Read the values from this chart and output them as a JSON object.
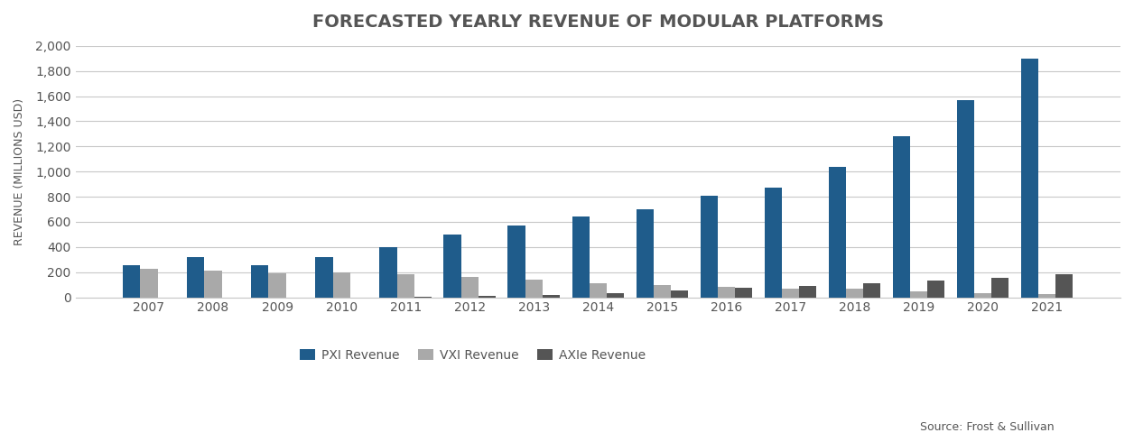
{
  "title": "FORECASTED YEARLY REVENUE OF MODULAR PLATFORMS",
  "ylabel": "REVENUE (MILLIONS USD)",
  "source": "Source: Frost & Sullivan",
  "years": [
    2007,
    2008,
    2009,
    2010,
    2011,
    2012,
    2013,
    2014,
    2015,
    2016,
    2017,
    2018,
    2019,
    2020,
    2021
  ],
  "pxi": [
    255,
    320,
    255,
    320,
    400,
    500,
    570,
    640,
    700,
    810,
    870,
    1040,
    1280,
    1570,
    1900
  ],
  "vxi": [
    230,
    210,
    190,
    195,
    180,
    160,
    140,
    110,
    100,
    80,
    70,
    70,
    50,
    35,
    25
  ],
  "axle": [
    0,
    0,
    0,
    0,
    2,
    10,
    20,
    30,
    55,
    75,
    90,
    115,
    135,
    155,
    180
  ],
  "pxi_color": "#1F5C8B",
  "vxi_color": "#A9A9A9",
  "axle_color": "#555555",
  "bg_color": "#FFFFFF",
  "grid_color": "#C8C8C8",
  "title_color": "#555555",
  "legend_labels": [
    "PXI Revenue",
    "VXI Revenue",
    "AXIe Revenue"
  ],
  "ylim": [
    0,
    2000
  ],
  "yticks": [
    0,
    200,
    400,
    600,
    800,
    1000,
    1200,
    1400,
    1600,
    1800,
    2000
  ],
  "bar_width": 0.27
}
